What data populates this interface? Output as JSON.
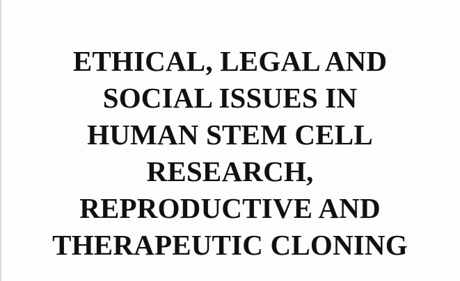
{
  "document": {
    "title_lines": [
      "ETHICAL, LEGAL AND",
      "SOCIAL ISSUES IN",
      "HUMAN STEM CELL",
      "RESEARCH,",
      "REPRODUCTIVE AND",
      "THERAPEUTIC CLONING"
    ]
  },
  "colors": {
    "text": "#111111",
    "background": "#fdfdfd"
  }
}
